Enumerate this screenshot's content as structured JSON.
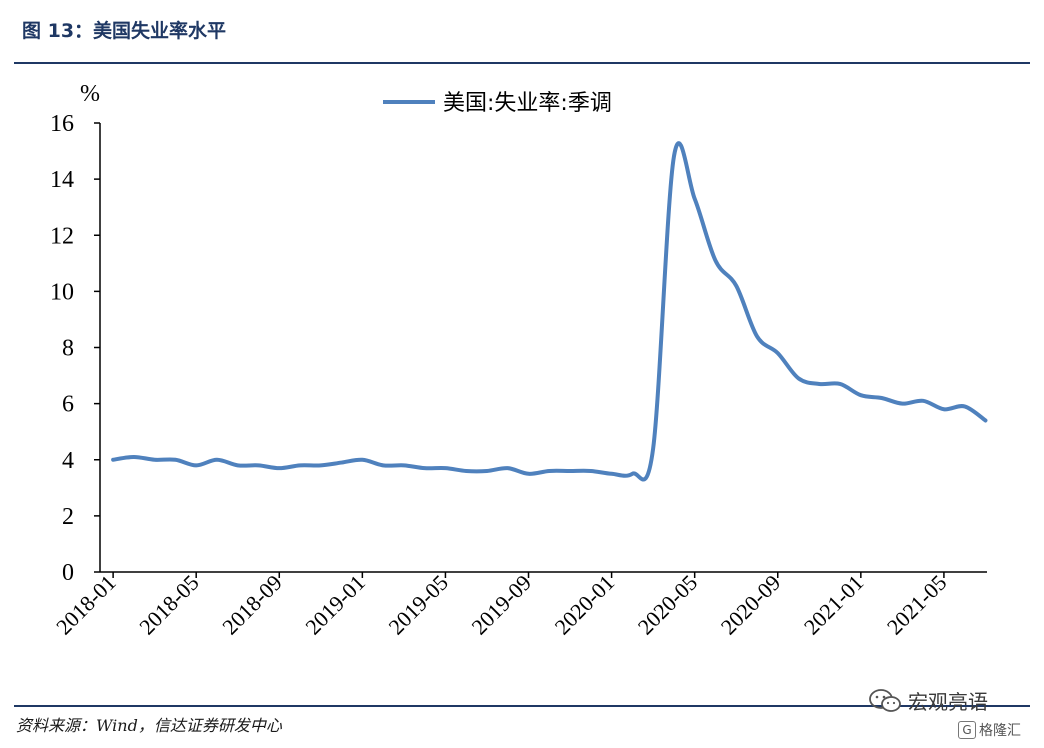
{
  "figure": {
    "title": "图 13：美国失业率水平",
    "source": "资料来源：Wind，信达证券研发中心"
  },
  "watermark": {
    "name": "宏观亮语",
    "brand": "格隆汇",
    "brand_logo": "G",
    "icon": "wechat-chat-icon"
  },
  "chart_data": {
    "type": "line",
    "unit_label": "%",
    "ylim": [
      0,
      16
    ],
    "yticks": [
      0,
      2,
      4,
      6,
      8,
      10,
      12,
      14,
      16
    ],
    "xticks": [
      "2018-01",
      "2018-05",
      "2018-09",
      "2019-01",
      "2019-05",
      "2019-09",
      "2020-01",
      "2020-05",
      "2020-09",
      "2021-01",
      "2021-05"
    ],
    "grid": false,
    "legend_position": "top-center",
    "color": "#4f81bd",
    "x": [
      "2018-01",
      "2018-02",
      "2018-03",
      "2018-04",
      "2018-05",
      "2018-06",
      "2018-07",
      "2018-08",
      "2018-09",
      "2018-10",
      "2018-11",
      "2018-12",
      "2019-01",
      "2019-02",
      "2019-03",
      "2019-04",
      "2019-05",
      "2019-06",
      "2019-07",
      "2019-08",
      "2019-09",
      "2019-10",
      "2019-11",
      "2019-12",
      "2020-01",
      "2020-02",
      "2020-03",
      "2020-04",
      "2020-05",
      "2020-06",
      "2020-07",
      "2020-08",
      "2020-09",
      "2020-10",
      "2020-11",
      "2020-12",
      "2021-01",
      "2021-02",
      "2021-03",
      "2021-04",
      "2021-05",
      "2021-06",
      "2021-07"
    ],
    "series": [
      {
        "name": "美国:失业率:季调",
        "values": [
          4.0,
          4.1,
          4.0,
          4.0,
          3.8,
          4.0,
          3.8,
          3.8,
          3.7,
          3.8,
          3.8,
          3.9,
          4.0,
          3.8,
          3.8,
          3.7,
          3.7,
          3.6,
          3.6,
          3.7,
          3.5,
          3.6,
          3.6,
          3.6,
          3.5,
          3.5,
          4.4,
          14.8,
          13.3,
          11.1,
          10.2,
          8.4,
          7.8,
          6.9,
          6.7,
          6.7,
          6.3,
          6.2,
          6.0,
          6.1,
          5.8,
          5.9,
          5.4
        ]
      }
    ]
  }
}
